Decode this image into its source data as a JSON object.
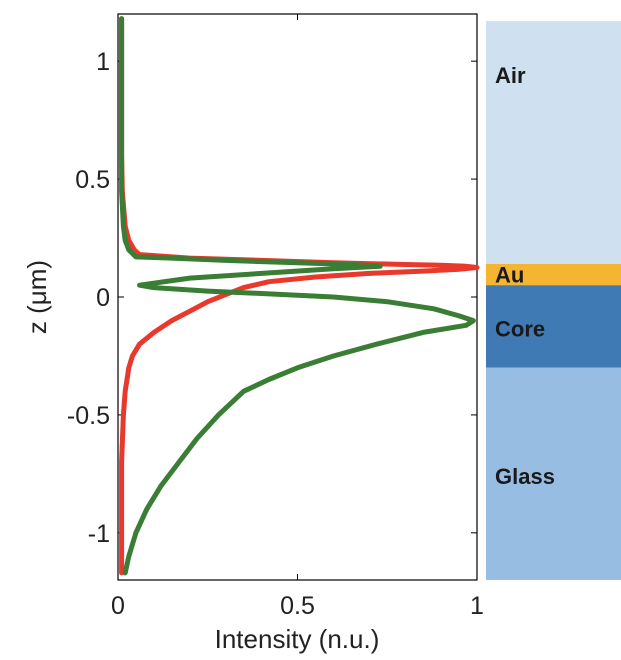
{
  "chart_data": {
    "type": "line",
    "xlabel": "Intensity (n.u.)",
    "ylabel": "z (μm)",
    "xlim": [
      0,
      1
    ],
    "ylim": [
      -1.2,
      1.2
    ],
    "x_ticks": [
      0,
      0.5,
      1
    ],
    "x_tick_labels": [
      "0",
      "0.5",
      "1"
    ],
    "y_ticks": [
      1,
      0.5,
      0,
      -0.5,
      -1
    ],
    "y_tick_labels": [
      "1",
      "0.5",
      "0",
      "-0.5",
      "-1"
    ],
    "grid": false,
    "series": [
      {
        "color": "#e8392c",
        "points": [
          [
            0.01,
            1.18
          ],
          [
            0.01,
            0.9
          ],
          [
            0.01,
            0.6
          ],
          [
            0.012,
            0.45
          ],
          [
            0.02,
            0.3
          ],
          [
            0.03,
            0.24
          ],
          [
            0.045,
            0.2
          ],
          [
            0.06,
            0.18
          ],
          [
            0.2,
            0.165
          ],
          [
            0.4,
            0.155
          ],
          [
            0.6,
            0.145
          ],
          [
            0.8,
            0.138
          ],
          [
            0.9,
            0.135
          ],
          [
            0.97,
            0.13
          ],
          [
            1.0,
            0.125
          ],
          [
            0.95,
            0.118
          ],
          [
            0.85,
            0.11
          ],
          [
            0.7,
            0.1
          ],
          [
            0.55,
            0.085
          ],
          [
            0.42,
            0.065
          ],
          [
            0.35,
            0.04
          ],
          [
            0.3,
            0.01
          ],
          [
            0.25,
            -0.02
          ],
          [
            0.2,
            -0.06
          ],
          [
            0.15,
            -0.1
          ],
          [
            0.1,
            -0.15
          ],
          [
            0.06,
            -0.2
          ],
          [
            0.04,
            -0.25
          ],
          [
            0.03,
            -0.3
          ],
          [
            0.02,
            -0.4
          ],
          [
            0.015,
            -0.5
          ],
          [
            0.01,
            -0.7
          ],
          [
            0.01,
            -0.9
          ],
          [
            0.01,
            -1.17
          ]
        ]
      },
      {
        "color": "#3a7d34",
        "points": [
          [
            0.01,
            1.18
          ],
          [
            0.01,
            0.9
          ],
          [
            0.01,
            0.6
          ],
          [
            0.01,
            0.45
          ],
          [
            0.015,
            0.3
          ],
          [
            0.02,
            0.24
          ],
          [
            0.03,
            0.2
          ],
          [
            0.05,
            0.17
          ],
          [
            0.15,
            0.165
          ],
          [
            0.3,
            0.155
          ],
          [
            0.5,
            0.145
          ],
          [
            0.65,
            0.138
          ],
          [
            0.73,
            0.13
          ],
          [
            0.6,
            0.12
          ],
          [
            0.4,
            0.1
          ],
          [
            0.2,
            0.08
          ],
          [
            0.06,
            0.05
          ],
          [
            0.1,
            0.04
          ],
          [
            0.25,
            0.025
          ],
          [
            0.4,
            0.015
          ],
          [
            0.6,
            0.0
          ],
          [
            0.75,
            -0.02
          ],
          [
            0.88,
            -0.05
          ],
          [
            0.95,
            -0.08
          ],
          [
            0.99,
            -0.1
          ],
          [
            0.97,
            -0.12
          ],
          [
            0.85,
            -0.15
          ],
          [
            0.72,
            -0.2
          ],
          [
            0.6,
            -0.25
          ],
          [
            0.5,
            -0.3
          ],
          [
            0.42,
            -0.35
          ],
          [
            0.35,
            -0.4
          ],
          [
            0.28,
            -0.5
          ],
          [
            0.22,
            -0.6
          ],
          [
            0.17,
            -0.7
          ],
          [
            0.12,
            -0.8
          ],
          [
            0.08,
            -0.9
          ],
          [
            0.05,
            -1.0
          ],
          [
            0.03,
            -1.1
          ],
          [
            0.02,
            -1.17
          ]
        ]
      }
    ]
  },
  "layers": [
    {
      "label": "Air",
      "color": "#cfe1f1",
      "z_top": 1.17,
      "z_bottom": 0.14
    },
    {
      "label": "Au",
      "color": "#f5b530",
      "z_top": 0.14,
      "z_bottom": 0.05
    },
    {
      "label": "Core",
      "color": "#3f7ab5",
      "z_top": 0.05,
      "z_bottom": -0.3
    },
    {
      "label": "Glass",
      "color": "#97bde3",
      "z_top": -0.3,
      "z_bottom": -1.2
    }
  ]
}
